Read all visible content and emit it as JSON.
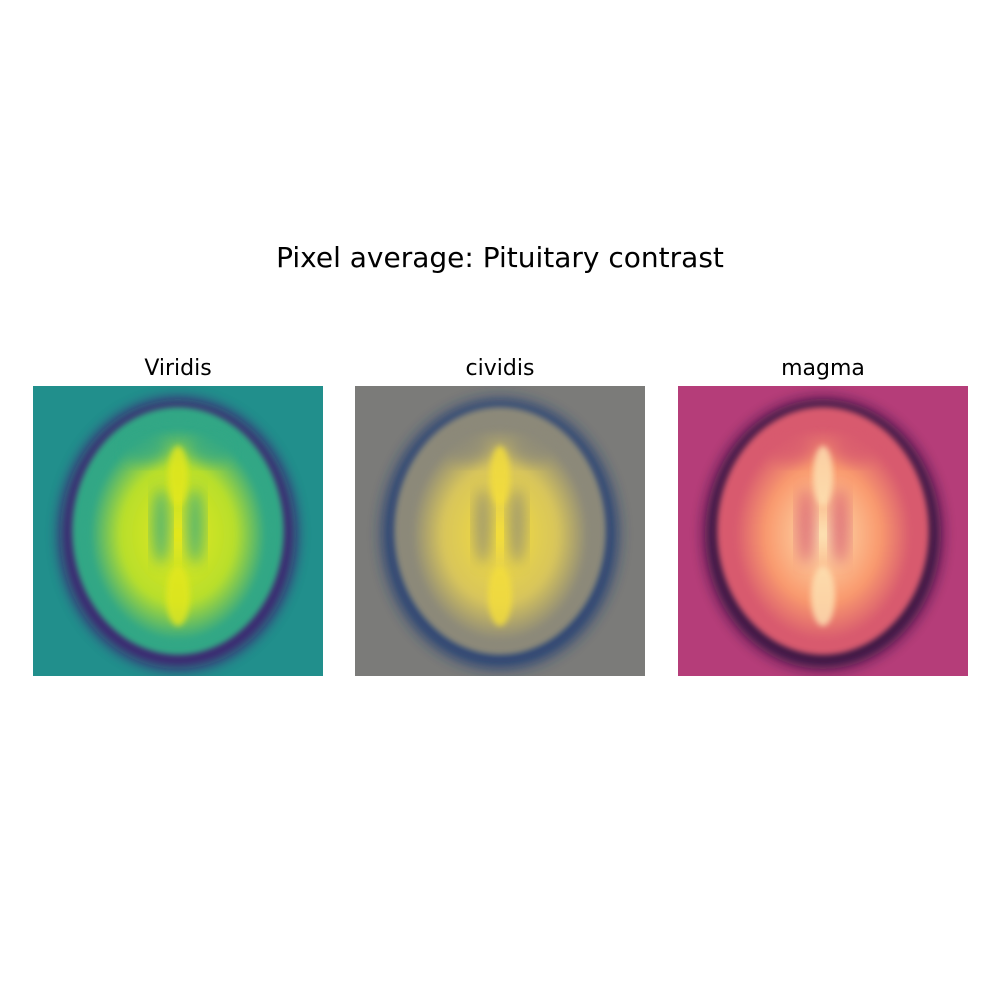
{
  "figure": {
    "title": "Pixel average: Pituitary contrast"
  },
  "panels": [
    {
      "title": "Viridis",
      "colormap": {
        "background": "#218f8c",
        "dark": "#44096b",
        "mid": "#30a785",
        "bright": "#b8df2b",
        "peak": "#e4e71e"
      }
    },
    {
      "title": "cividis",
      "colormap": {
        "background": "#7b7b79",
        "dark": "#1f3a73",
        "mid": "#8c8979",
        "bright": "#d8c55b",
        "peak": "#f4de3b"
      }
    },
    {
      "title": "magma",
      "colormap": {
        "background": "#b53d79",
        "dark": "#1c0c37",
        "mid": "#d85a6e",
        "bright": "#f99a6e",
        "peak": "#fde2b3"
      }
    }
  ]
}
